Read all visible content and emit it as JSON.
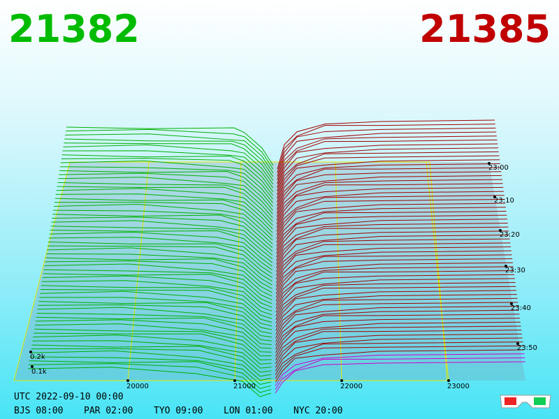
{
  "header": {
    "bid": "21382",
    "ask": "21385"
  },
  "price_axis": {
    "labels": [
      "20000",
      "21000",
      "22000",
      "23000"
    ]
  },
  "time_axis": {
    "labels": [
      "23:00",
      "23:10",
      "23:20",
      "23:30",
      "23:40",
      "23:50"
    ]
  },
  "volume_axis": {
    "labels": [
      "0.2k",
      "0.1k"
    ]
  },
  "footer": {
    "utc": "UTC 2022-09-10 00:00",
    "zones": [
      "BJS 08:00",
      "PAR 02:00",
      "TYO 09:00",
      "LON 01:00",
      "NYC 20:00"
    ]
  }
}
